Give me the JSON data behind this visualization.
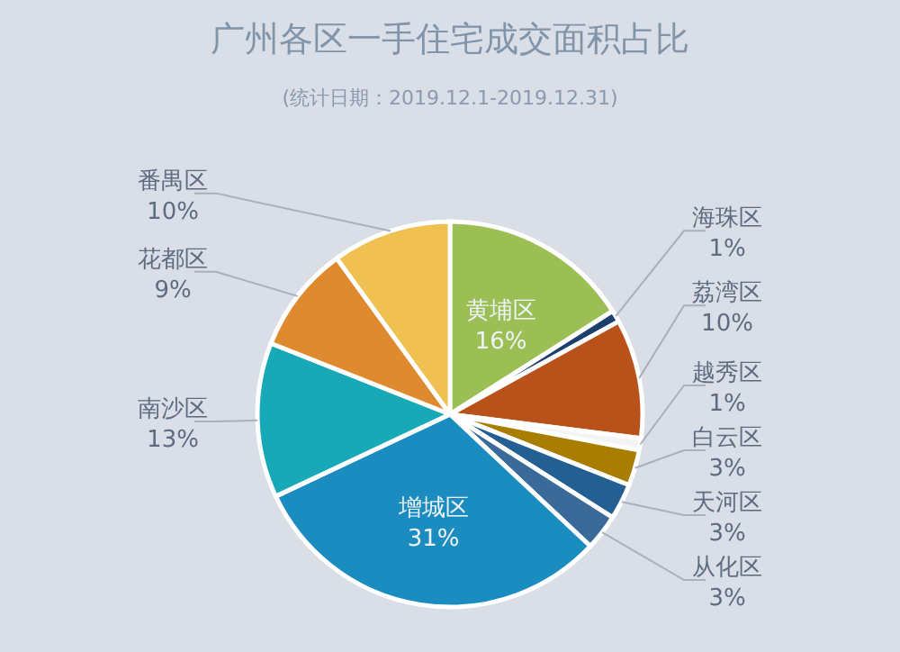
{
  "chart_data": {
    "type": "pie",
    "title": "广州各区一手住宅成交面积占比",
    "subtitle": "(统计日期：2019.12.1-2019.12.31)",
    "categories": [
      "黄埔区",
      "海珠区",
      "荔湾区",
      "越秀区",
      "白云区",
      "天河区",
      "从化区",
      "增城区",
      "南沙区",
      "花都区",
      "番禺区"
    ],
    "values": [
      16,
      1,
      10,
      1,
      3,
      3,
      3,
      31,
      13,
      9,
      10
    ],
    "colors": [
      "#9bbf55",
      "#1d3f6e",
      "#b8521a",
      "#f4f4f4",
      "#a87d00",
      "#245f94",
      "#3a6a9a",
      "#1a8cc0",
      "#17a9b8",
      "#e08a30",
      "#f0c050"
    ],
    "value_labels": [
      "16%",
      "1%",
      "10%",
      "1%",
      "3%",
      "3%",
      "3%",
      "31%",
      "13%",
      "9%",
      "10%"
    ]
  }
}
